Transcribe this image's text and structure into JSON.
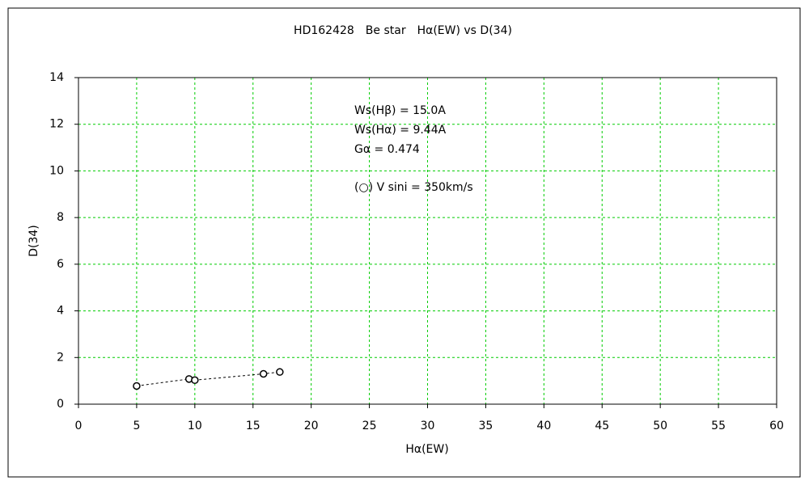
{
  "chart_data": {
    "type": "scatter",
    "title": "HD162428　Be star　Hα(EW) vs D(34)",
    "x_label": "Hα(EW)",
    "y_label": "D(34)",
    "annotations": [
      "Ws(Hβ) = 15.0A",
      "Ws(Hα) = 9.44A",
      "Gα = 0.474",
      "(○) V sini = 350km/s"
    ],
    "series": [
      {
        "x": [
          5.0,
          9.5,
          10.0,
          15.9,
          17.3
        ],
        "values": [
          0.78,
          1.08,
          1.03,
          1.3,
          1.38
        ],
        "color": "#000000",
        "line": "dashed"
      }
    ],
    "xlim": [
      0,
      60
    ],
    "xticks": [
      0,
      5,
      10,
      15,
      20,
      25,
      30,
      35,
      40,
      45,
      50,
      55,
      60
    ],
    "ylim": [
      0,
      14
    ],
    "yticks": [
      0,
      2,
      4,
      6,
      8,
      10,
      12,
      14
    ],
    "grid": true,
    "grid_color": "#00cc00"
  }
}
